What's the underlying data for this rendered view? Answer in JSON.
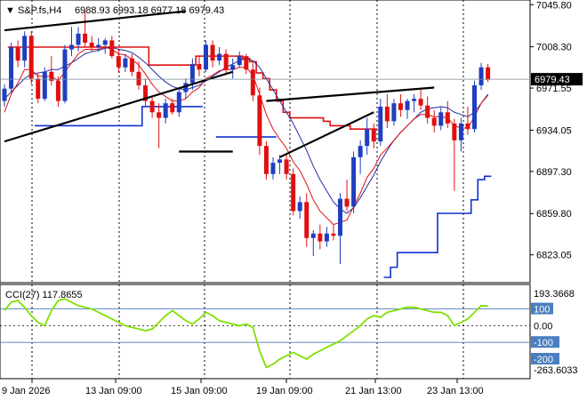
{
  "header": {
    "symbol": "S&P.fs,H4",
    "ohlc": "6988.93 6993.18 6977.18 6979.43"
  },
  "colors": {
    "background": "#ffffff",
    "bull": "#1f3fbf",
    "bear": "#e01010",
    "ma_fast": "#e01010",
    "ma_slow": "#1f2f9f",
    "support_resistance_red": "#e01010",
    "support_resistance_blue": "#1030d0",
    "trendline": "#000000",
    "cci_line": "#7fe000",
    "cci_level": "#4a7fbf",
    "price_tag_bg": "#000000",
    "price_tag_text": "#ffffff"
  },
  "chart_data": [
    {
      "type": "candlestick",
      "title": "S&P.fs,H4",
      "ylim": [
        6803,
        7046
      ],
      "y_ticks": [
        "7045.80",
        "7008.30",
        "6971.55",
        "6934.05",
        "6897.30",
        "6859.80",
        "6823.05"
      ],
      "x_ticks": [
        "9 Jan 2026",
        "13 Jan 09:00",
        "15 Jan 09:00",
        "19 Jan 09:00",
        "21 Jan 13:00",
        "23 Jan 13:00"
      ],
      "current_price": "6979.43",
      "candles": [
        [
          6960,
          6975,
          6955,
          6971
        ],
        [
          6971,
          7012,
          6968,
          7008
        ],
        [
          7008,
          7014,
          6990,
          6996
        ],
        [
          6996,
          7022,
          6990,
          7018
        ],
        [
          7018,
          7022,
          6975,
          6980
        ],
        [
          6980,
          6985,
          6958,
          6962
        ],
        [
          6962,
          6990,
          6960,
          6986
        ],
        [
          6986,
          7000,
          6974,
          6978
        ],
        [
          6978,
          6982,
          6955,
          6960
        ],
        [
          6960,
          7010,
          6958,
          7006
        ],
        [
          7006,
          7026,
          7000,
          7010
        ],
        [
          7010,
          7026,
          7004,
          7020
        ],
        [
          7020,
          7040,
          7008,
          7012
        ],
        [
          7012,
          7018,
          7004,
          7008
        ],
        [
          7008,
          7016,
          7004,
          7010
        ],
        [
          7010,
          7016,
          7002,
          7014
        ],
        [
          7014,
          7018,
          6998,
          7000
        ],
        [
          7000,
          7006,
          6985,
          6990
        ],
        [
          6990,
          7002,
          6986,
          6998
        ],
        [
          6998,
          7002,
          6982,
          6986
        ],
        [
          6986,
          6995,
          6970,
          6974
        ],
        [
          6974,
          6980,
          6955,
          6960
        ],
        [
          6960,
          6965,
          6945,
          6950
        ],
        [
          6950,
          6958,
          6918,
          6945
        ],
        [
          6945,
          6962,
          6940,
          6958
        ],
        [
          6958,
          6962,
          6948,
          6950
        ],
        [
          6950,
          6972,
          6946,
          6968
        ],
        [
          6968,
          6980,
          6962,
          6976
        ],
        [
          6976,
          6998,
          6970,
          6993
        ],
        [
          6993,
          7000,
          6982,
          6988
        ],
        [
          6988,
          7014,
          6986,
          7010
        ],
        [
          7010,
          7014,
          6990,
          6996
        ],
        [
          6996,
          7008,
          6992,
          7002
        ],
        [
          7002,
          7006,
          6984,
          6988
        ],
        [
          6988,
          6998,
          6980,
          6992
        ],
        [
          6992,
          7004,
          6990,
          7000
        ],
        [
          7000,
          7002,
          6984,
          6988
        ],
        [
          6988,
          6994,
          6960,
          6965
        ],
        [
          6965,
          6972,
          6912,
          6920
        ],
        [
          6920,
          6924,
          6890,
          6895
        ],
        [
          6895,
          6910,
          6890,
          6905
        ],
        [
          6905,
          6912,
          6895,
          6908
        ],
        [
          6908,
          6912,
          6890,
          6895
        ],
        [
          6895,
          6900,
          6858,
          6862
        ],
        [
          6862,
          6875,
          6855,
          6870
        ],
        [
          6870,
          6878,
          6830,
          6838
        ],
        [
          6838,
          6845,
          6822,
          6842
        ],
        [
          6842,
          6850,
          6828,
          6835
        ],
        [
          6835,
          6848,
          6830,
          6842
        ],
        [
          6842,
          6850,
          6836,
          6840
        ],
        [
          6840,
          6878,
          6815,
          6873
        ],
        [
          6873,
          6890,
          6862,
          6866
        ],
        [
          6866,
          6915,
          6860,
          6910
        ],
        [
          6910,
          6925,
          6895,
          6920
        ],
        [
          6920,
          6945,
          6912,
          6935
        ],
        [
          6935,
          6940,
          6918,
          6924
        ],
        [
          6924,
          6962,
          6920,
          6955
        ],
        [
          6955,
          6966,
          6936,
          6942
        ],
        [
          6942,
          6962,
          6938,
          6958
        ],
        [
          6958,
          6966,
          6946,
          6952
        ],
        [
          6952,
          6962,
          6944,
          6960
        ],
        [
          6960,
          6966,
          6950,
          6962
        ],
        [
          6962,
          6970,
          6952,
          6956
        ],
        [
          6956,
          6964,
          6940,
          6945
        ],
        [
          6945,
          6952,
          6932,
          6938
        ],
        [
          6938,
          6955,
          6934,
          6950
        ],
        [
          6950,
          6960,
          6936,
          6940
        ],
        [
          6940,
          6944,
          6880,
          6925
        ],
        [
          6925,
          6945,
          6915,
          6940
        ],
        [
          6940,
          6955,
          6930,
          6935
        ],
        [
          6935,
          6978,
          6932,
          6974
        ],
        [
          6974,
          6994,
          6970,
          6990
        ],
        [
          6990,
          6993,
          6977,
          6979
        ]
      ],
      "ma_fast": [
        6950,
        6966,
        6976,
        6988,
        6988,
        6982,
        6982,
        6982,
        6978,
        6986,
        6994,
        7002,
        7006,
        7006,
        7006,
        7008,
        7006,
        7002,
        7001,
        6997,
        6992,
        6984,
        6975,
        6968,
        6964,
        6960,
        6960,
        6962,
        6968,
        6972,
        6980,
        6983,
        6987,
        6988,
        6988,
        6990,
        6990,
        6983,
        6966,
        6948,
        6935,
        6926,
        6918,
        6906,
        6898,
        6886,
        6872,
        6862,
        6856,
        6850,
        6852,
        6854,
        6866,
        6878,
        6892,
        6900,
        6912,
        6918,
        6925,
        6932,
        6938,
        6944,
        6948,
        6948,
        6946,
        6946,
        6945,
        6938,
        6936,
        6936,
        6946,
        6958,
        6965
      ],
      "ma_slow": [
        6962,
        6968,
        6974,
        6980,
        6984,
        6985,
        6986,
        6988,
        6988,
        6991,
        6994,
        6998,
        7002,
        7004,
        7005,
        7007,
        7008,
        7006,
        7005,
        7003,
        6999,
        6994,
        6988,
        6982,
        6977,
        6973,
        6971,
        6970,
        6972,
        6974,
        6978,
        6982,
        6986,
        6990,
        6993,
        6996,
        6998,
        6996,
        6990,
        6980,
        6970,
        6960,
        6950,
        6940,
        6928,
        6916,
        6902,
        6890,
        6880,
        6870,
        6864,
        6860,
        6865,
        6874,
        6884,
        6894,
        6906,
        6916,
        6925,
        6932,
        6938,
        6944,
        6950,
        6953,
        6954,
        6955,
        6954,
        6950,
        6948,
        6946,
        6950,
        6958,
        6966
      ],
      "red_stop": [
        null,
        7008,
        7008,
        7008,
        7008,
        7008,
        7008,
        7008,
        7008,
        7008,
        7008,
        7008,
        7008,
        7008,
        7008,
        7008,
        7008,
        7008,
        7008,
        7008,
        7008,
        7008,
        6992,
        6992,
        6992,
        6992,
        6992,
        6992,
        6992,
        7000,
        7000,
        7000,
        7000,
        7000,
        7000,
        7000,
        6998,
        6995,
        6985,
        6980,
        6970,
        6960,
        6950,
        6945,
        6945,
        6945,
        6945,
        6945,
        6942,
        6938,
        6938,
        6938,
        6935,
        6935,
        6935,
        6935,
        null,
        null,
        null,
        null,
        null,
        null,
        null,
        null,
        null,
        null,
        null,
        null,
        null,
        null,
        null,
        null,
        null
      ],
      "blue_stop": [
        null,
        null,
        null,
        null,
        null,
        6938,
        6938,
        6938,
        6938,
        6938,
        6938,
        6938,
        6938,
        6938,
        6938,
        6938,
        6938,
        6938,
        6938,
        6938,
        6938,
        6955,
        6955,
        6955,
        6955,
        6955,
        6955,
        6955,
        6955,
        6955,
        null,
        null,
        6928,
        6928,
        6928,
        6928,
        6928,
        6928,
        6928,
        6928,
        6928,
        null,
        null,
        null,
        null,
        null,
        null,
        null,
        null,
        null,
        null,
        null,
        null,
        null,
        null,
        null,
        null,
        6803,
        6812,
        6825,
        6825,
        6825,
        6825,
        6825,
        6825,
        6860,
        6860,
        6860,
        6860,
        6860,
        6872,
        6890,
        6893
      ],
      "trendlines": [
        [
          [
            0,
            7023
          ],
          [
            27,
            7040
          ]
        ],
        [
          [
            0,
            6924
          ],
          [
            34,
            6986
          ]
        ],
        [
          [
            26,
            6915
          ],
          [
            34,
            6915
          ]
        ],
        [
          [
            39,
            6960
          ],
          [
            64,
            6972
          ]
        ],
        [
          [
            41,
            6910
          ],
          [
            55,
            6950
          ]
        ]
      ]
    },
    {
      "type": "line",
      "title": "CCI(27) 117.8655",
      "ylim": [
        -263.6033,
        193.3668
      ],
      "y_ticks": [
        "193.3668",
        "100",
        "0.00",
        "-100",
        "-200",
        "-263.6033"
      ],
      "levels": [
        100,
        -100
      ],
      "values": [
        90,
        140,
        150,
        110,
        60,
        20,
        0,
        90,
        150,
        160,
        140,
        120,
        110,
        100,
        80,
        60,
        40,
        20,
        0,
        -10,
        -20,
        -30,
        -20,
        20,
        60,
        90,
        60,
        30,
        10,
        40,
        80,
        60,
        30,
        20,
        10,
        0,
        10,
        -10,
        -150,
        -250,
        -230,
        -200,
        -180,
        -160,
        -180,
        -200,
        -170,
        -150,
        -130,
        -110,
        -90,
        -60,
        -30,
        0,
        40,
        60,
        50,
        80,
        90,
        100,
        110,
        110,
        100,
        90,
        80,
        80,
        60,
        0,
        20,
        40,
        80,
        120,
        117.8655
      ]
    }
  ]
}
